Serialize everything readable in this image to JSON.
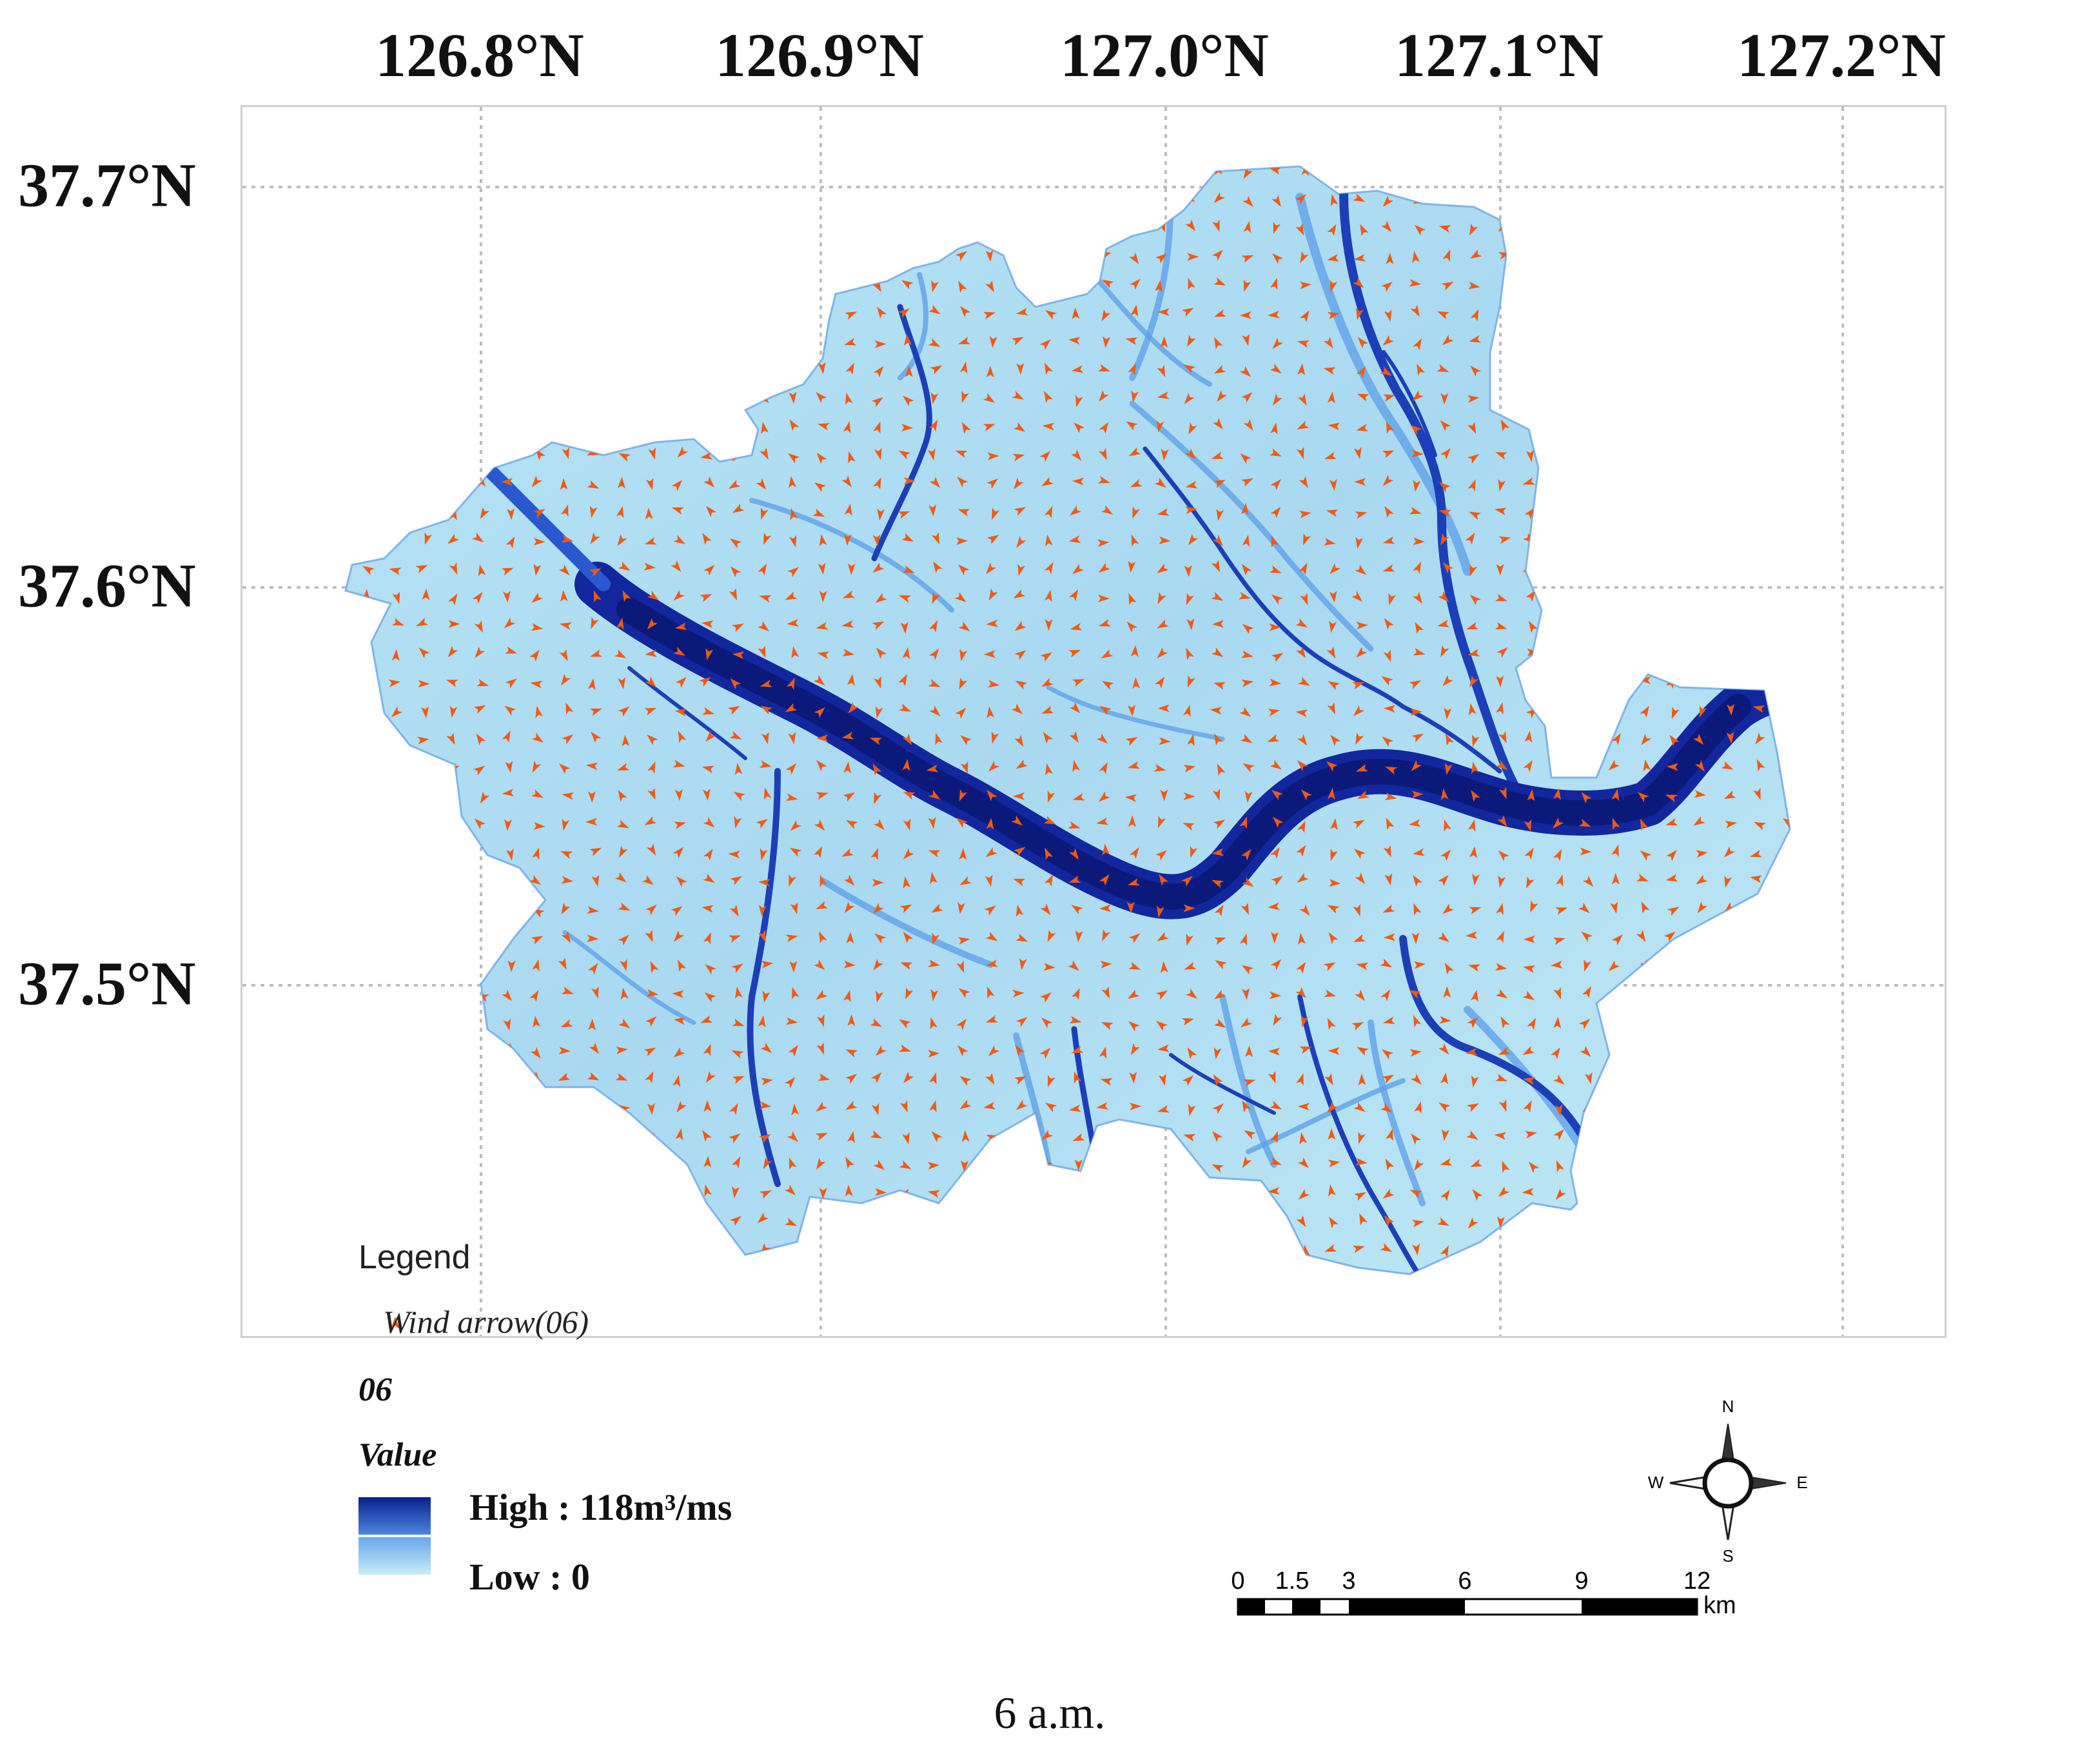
{
  "map": {
    "longitude_labels": [
      "126.8°N",
      "126.9°N",
      "127.0°N",
      "127.1°N",
      "127.2°N"
    ],
    "latitude_labels": [
      "37.7°N",
      "37.6°N",
      "37.5°N"
    ],
    "colors": {
      "low": "#c7ecf6",
      "mid": "#5b9ee8",
      "high": "#0b1f8c",
      "wind_arrow": "#f05a14",
      "grid": "#bdbdbd"
    }
  },
  "legend": {
    "title": "Legend",
    "wind_label": "Wind arrow(06)",
    "layer_name": "06",
    "value_title": "Value",
    "high_label": "High : 118m³/ms",
    "low_label": "Low  : 0"
  },
  "compass": {
    "n": "N",
    "s": "S",
    "e": "E",
    "w": "W"
  },
  "scalebar": {
    "ticks": [
      "0",
      "1.5",
      "3",
      "6",
      "9",
      "12"
    ],
    "unit": "km"
  },
  "caption": "6  a.m."
}
